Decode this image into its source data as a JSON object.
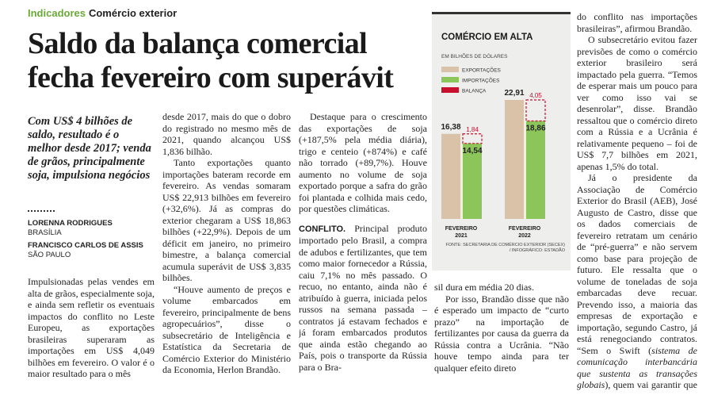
{
  "kicker": {
    "section": "Indicadores",
    "topic": "Comércio exterior"
  },
  "headline": "Saldo da balança comercial fecha fevereiro com superávit",
  "deck": "Com US$ 4 bilhões de saldo, resultado é o melhor desde 2017; venda de grãos, principalmente soja, impulsiona negócios",
  "bylines": [
    {
      "name": "LORENNA RODRIGUES",
      "place": "BRASÍLIA"
    },
    {
      "name": "FRANCISCO CARLOS DE ASSIS",
      "place": "SÃO PAULO"
    }
  ],
  "columns": [
    [
      "Impulsionadas pelas vendes em alta de grãos, especialmente soja, e ainda sem refletir os eventuais impactos do conflito no Leste Europeu, as exportações brasileiras superaram as importações em US$ 4,049 bilhões em fevereiro. O valor é o maior resultado para o mês"
    ],
    [
      "desde 2017, mais do que o dobro do registrado no mesmo mês de 2021, quando alcançou US$ 1,836 bilhão.",
      "Tanto exportações quanto importações bateram recorde em fevereiro. As vendas somaram US$ 22,913 bilhões em fevereiro (+32,6%). Já as compras do exterior chegaram a US$ 18,863 bilhões (+22,9%). Depois de um déficit em janeiro, no primeiro bimestre, a balança comercial acumula superávit de US$ 3,835 bilhões.",
      "“Houve aumento de preços e volume embarcados em fevereiro, principalmente de bens agropecuários”, disse o subsecretário de Inteligência e Estatística da Secretaria de Comércio Exterior do Ministério da Economia, Herlon Brandão."
    ],
    [
      "Destaque para o crescimento das exportações de soja (+187,5% pela média diária), trigo e centeio (+874%) e café não torrado (+89,7%). Houve aumento no volume de soja exportado porque a safra do grão foi plantada e colhida mais cedo, por questões climáticas."
    ],
    [
      "sil dura em média 20 dias.",
      "Por isso, Brandão disse que não é esperado um impacto de “curto prazo” na importação de fertilizantes por causa da guerra da Rússia contra a Ucrânia. “Não houve tempo ainda para ter qualquer efeito direto"
    ],
    [
      "do conflito nas importações brasileiras”, afirmou Brandão.",
      "O subsecretário evitou fazer previsões de como o comércio exterior brasileiro será impactado pela guerra. “Temos de esperar mais um pouco para ver como isso vai se desenrolar”, disse. Brandão ressaltou que o comércio direto com a Rússia e a Ucrânia é relativamente pequeno – foi de US$ 7,7 bilhões em 2021, apenas 1,5% do total."
    ]
  ],
  "subhead_paragraph": {
    "lead": "CONFLITO.",
    "text": "Principal produto importado pelo Brasil, a compra de adubos e fertilizantes, que tem como maior fornecedor a Rússia, caiu 7,1% no mês passado. O recuo, no entanto, ainda não é atribuído à guerra, iniciada pelos russos na semana passada – contratos já estavam fechados e já foram embarcados produtos que ainda estão chegando ao País, pois o transporte da Rússia para o Bra-"
  },
  "closing_paragraph": {
    "before": "Já o presidente da Associação de Comércio Exterior do Brasil (AEB), José Augusto de Castro, disse que os dados comerciais de fevereiro retratam um cenário de “pré-guerra” e não servem como base para projeção de futuro. Ele ressalta que o volume de toneladas de soja embarcadas deve recuar. Prevendo isso, a maioria das empresas de exportação e importação, segundo Castro, já está renegociando contratos. “Sem o Swift (",
    "italic": "sistema de comunicação interbancária que sustenta as transações globais",
    "after": "), quem vai garantir que o exportador vai receber?”, questiona Castro."
  },
  "chart_data": {
    "type": "bar",
    "title": "COMÉRCIO EM ALTA",
    "subtitle": "EM BILHÕES DE DÓLARES",
    "categories": [
      [
        "FEVEREIRO",
        "2021"
      ],
      [
        "FEVEREIRO",
        "2022"
      ]
    ],
    "series": [
      {
        "name": "EXPORTAÇÕES",
        "color": "#d9c2a8",
        "values": [
          16.38,
          22.91
        ],
        "value_labels": [
          "16,38",
          "22,91"
        ]
      },
      {
        "name": "IMPORTAÇÕES",
        "color": "#8cc65a",
        "values": [
          14.54,
          18.86
        ],
        "value_labels": [
          "14,54",
          "18,86"
        ]
      },
      {
        "name": "BALANÇA",
        "color": "#c8102e",
        "values": [
          1.84,
          4.05
        ],
        "value_labels": [
          "1,84",
          "4,05"
        ]
      }
    ],
    "source": "FONTE: SECRETARIA DE COMÉRCIO EXTERIOR (SECEX) / INFOGRÁFICO: ESTADÃO"
  }
}
